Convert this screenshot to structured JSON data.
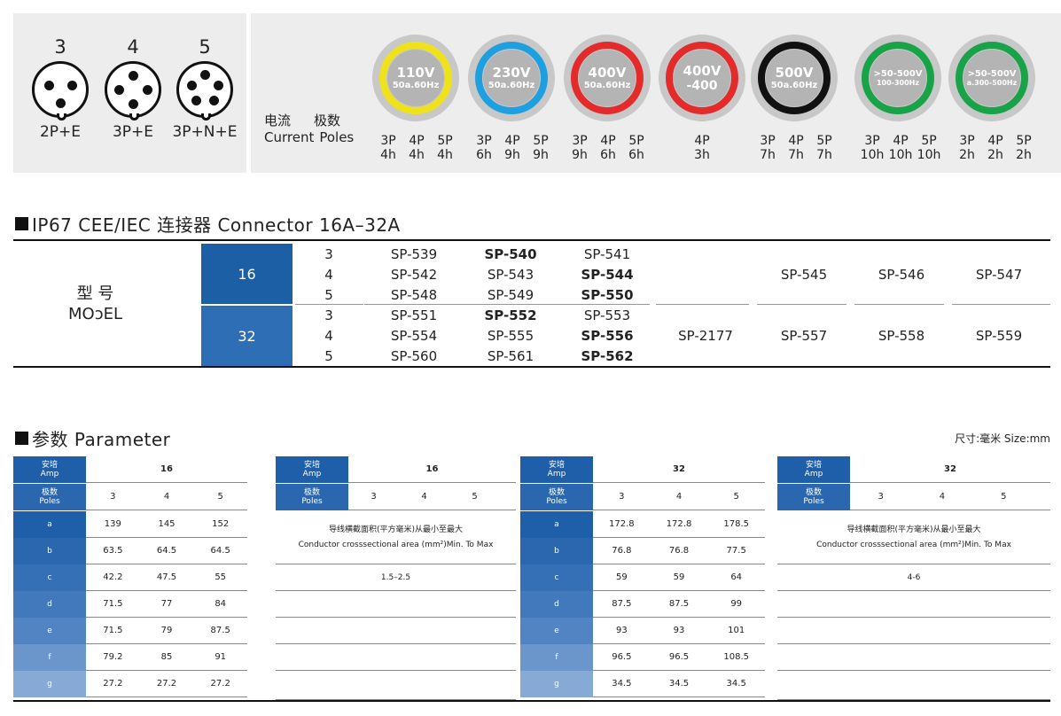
{
  "plugs": [
    {
      "count": "3",
      "config": "2P+E"
    },
    {
      "count": "4",
      "config": "3P+E"
    },
    {
      "count": "5",
      "config": "3P+N+E"
    }
  ],
  "legend": {
    "current_cn": "电流",
    "poles_cn": "极数",
    "current_en": "Current",
    "poles_en": "Poles"
  },
  "voltages": [
    {
      "v": "110V",
      "hz": "50a.60Hz",
      "color": "#f0e21a",
      "poles": [
        [
          "3P",
          "4h"
        ],
        [
          "4P",
          "4h"
        ],
        [
          "5P",
          "4h"
        ]
      ]
    },
    {
      "v": "230V",
      "hz": "50a.60Hz",
      "color": "#1ea0e0",
      "poles": [
        [
          "3P",
          "6h"
        ],
        [
          "4P",
          "9h"
        ],
        [
          "5P",
          "9h"
        ]
      ]
    },
    {
      "v": "400V",
      "hz": "50a.60Hz",
      "color": "#e32b2b",
      "poles": [
        [
          "3P",
          "9h"
        ],
        [
          "4P",
          "6h"
        ],
        [
          "5P",
          "6h"
        ]
      ]
    },
    {
      "v": "400V",
      "hz": "-400",
      "color": "#e32b2b",
      "poles": [
        [
          "4P",
          "3h"
        ]
      ]
    },
    {
      "v": "500V",
      "hz": "50a.60Hz",
      "color": "#111111",
      "poles": [
        [
          "3P",
          "7h"
        ],
        [
          "4P",
          "7h"
        ],
        [
          "5P",
          "7h"
        ]
      ]
    },
    {
      "v": ">50-500V",
      "hz": "100-300Hz",
      "color": "#18a348",
      "poles": [
        [
          "3P",
          "10h"
        ],
        [
          "4P",
          "10h"
        ],
        [
          "5P",
          "10h"
        ]
      ]
    },
    {
      "v": ">50-500V",
      "hz": "a.300-500Hz",
      "color": "#18a348",
      "poles": [
        [
          "3P",
          "2h"
        ],
        [
          "4P",
          "2h"
        ],
        [
          "5P",
          "2h"
        ]
      ]
    }
  ],
  "model_section": {
    "title": "IP67 CEE/IEC 连接器 Connector  16A–32A",
    "label_cn": "型 号",
    "label_en": "MOɔEL",
    "groups": [
      {
        "amp": "16",
        "rows": [
          {
            "poles": "3",
            "m1": "SP-539",
            "m2": "SP-540",
            "m3": "SP-541"
          },
          {
            "poles": "4",
            "m1": "SP-542",
            "m2": "SP-543",
            "m3": "SP-544"
          },
          {
            "poles": "5",
            "m1": "SP-548",
            "m2": "SP-549",
            "m3": "SP-550"
          }
        ],
        "extra": [
          "",
          "SP-545",
          "SP-546",
          "SP-547"
        ]
      },
      {
        "amp": "32",
        "rows": [
          {
            "poles": "3",
            "m1": "SP-551",
            "m2": "SP-552",
            "m3": "SP-553"
          },
          {
            "poles": "4",
            "m1": "SP-554",
            "m2": "SP-555",
            "m3": "SP-556"
          },
          {
            "poles": "5",
            "m1": "SP-560",
            "m2": "SP-561",
            "m3": "SP-562"
          }
        ],
        "extra": [
          "SP-2177",
          "SP-557",
          "SP-558",
          "SP-559"
        ]
      }
    ]
  },
  "param_section": {
    "title": "参数 Parameter",
    "size_note": "尺寸:毫米  Size:mm",
    "tables": [
      {
        "amp_cn": "安培",
        "amp_en": "Amp",
        "poles_cn": "极数",
        "poles_en": "Poles",
        "amp": "16",
        "poles": [
          "3",
          "4",
          "5"
        ],
        "rows": [
          {
            "k": "a",
            "v": [
              "139",
              "145",
              "152"
            ]
          },
          {
            "k": "b",
            "v": [
              "63.5",
              "64.5",
              "64.5"
            ]
          },
          {
            "k": "c",
            "v": [
              "42.2",
              "47.5",
              "55"
            ]
          },
          {
            "k": "d",
            "v": [
              "71.5",
              "77",
              "84"
            ]
          },
          {
            "k": "e",
            "v": [
              "71.5",
              "79",
              "87.5"
            ]
          },
          {
            "k": "f",
            "v": [
              "79.2",
              "85",
              "91"
            ]
          },
          {
            "k": "g",
            "v": [
              "27.2",
              "27.2",
              "27.2"
            ]
          }
        ]
      },
      {
        "amp_cn": "安培",
        "amp_en": "Amp",
        "poles_cn": "极数",
        "poles_en": "Poles",
        "amp": "16",
        "poles": [
          "3",
          "4",
          "5"
        ],
        "note_cn": "导线横截面积(平方毫米)从最小至最大",
        "note_en": "Conductor crosssectional area (mm²)Min. To Max",
        "range": "1.5–2.5"
      },
      {
        "amp_cn": "安培",
        "amp_en": "Amp",
        "poles_cn": "极数",
        "poles_en": "Poles",
        "amp": "32",
        "poles": [
          "3",
          "4",
          "5"
        ],
        "rows": [
          {
            "k": "a",
            "v": [
              "172.8",
              "172.8",
              "178.5"
            ]
          },
          {
            "k": "b",
            "v": [
              "76.8",
              "76.8",
              "77.5"
            ]
          },
          {
            "k": "c",
            "v": [
              "59",
              "59",
              "64"
            ]
          },
          {
            "k": "d",
            "v": [
              "87.5",
              "87.5",
              "99"
            ]
          },
          {
            "k": "e",
            "v": [
              "93",
              "93",
              "101"
            ]
          },
          {
            "k": "f",
            "v": [
              "96.5",
              "96.5",
              "108.5"
            ]
          },
          {
            "k": "g",
            "v": [
              "34.5",
              "34.5",
              "34.5"
            ]
          }
        ]
      },
      {
        "amp_cn": "安培",
        "amp_en": "Amp",
        "poles_cn": "极数",
        "poles_en": "Poles",
        "amp": "32",
        "poles": [
          "3",
          "4",
          "5"
        ],
        "note_cn": "导线横截面积(平方毫米)从最小至最大",
        "note_en": "Conductor crosssectional area (mm²)Min. To Max",
        "range": "4-6"
      }
    ]
  },
  "colors": {
    "amp16": "#1c5fa5",
    "amp32": "#2d6eb5",
    "head_dark": "#1f5ea8",
    "head_light": "#86a9d6"
  }
}
